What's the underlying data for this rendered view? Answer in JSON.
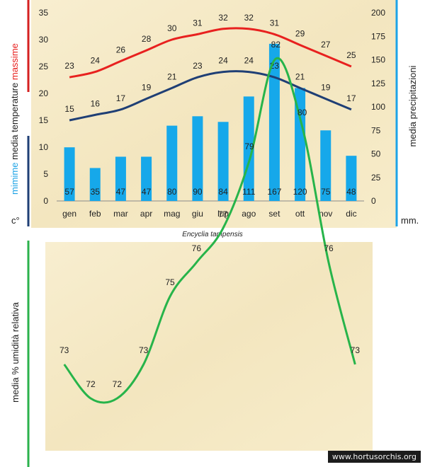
{
  "chart_data": [
    {
      "type": "bar",
      "title": "",
      "categories": [
        "gen",
        "feb",
        "mar",
        "apr",
        "mag",
        "giu",
        "lug",
        "ago",
        "set",
        "ott",
        "nov",
        "dic"
      ],
      "y_left": {
        "ticks": [
          0,
          5,
          10,
          15,
          20,
          25,
          30,
          35
        ],
        "ylim": [
          0,
          35
        ],
        "unit": "c°",
        "label_parts": {
          "top": "massime",
          "middle": "media  temperature",
          "bottom": "mimime"
        }
      },
      "y_right": {
        "ticks": [
          0,
          25,
          50,
          75,
          100,
          125,
          150,
          175,
          200
        ],
        "ylim": [
          0,
          200
        ],
        "unit": "mm.",
        "label": "media  precipitazioni"
      },
      "series": [
        {
          "name": "media precipitazioni",
          "kind": "bar",
          "axis": "right",
          "color": "#16a8ea",
          "values": [
            57,
            35,
            47,
            47,
            80,
            90,
            84,
            111,
            167,
            120,
            75,
            48
          ]
        },
        {
          "name": "massime",
          "kind": "line",
          "axis": "left",
          "color": "#e8211f",
          "values": [
            23,
            24,
            26,
            28,
            30,
            31,
            32,
            32,
            31,
            29,
            27,
            25
          ]
        },
        {
          "name": "mimime",
          "kind": "line",
          "axis": "left",
          "color": "#1f3f75",
          "values": [
            15,
            16,
            17,
            19,
            21,
            23,
            24,
            24,
            23,
            21,
            19,
            17
          ]
        }
      ],
      "grid": false,
      "colors": {
        "title_massime": "#e8211f",
        "title_mimime": "#1da3e6",
        "left_axis_top": "#d42020",
        "left_axis_bottom": "#1f3f75",
        "right_axis": "#1da3e6"
      }
    },
    {
      "type": "line",
      "title": "Encyclia tampensis",
      "categories": [
        "gen",
        "feb",
        "mar",
        "apr",
        "mag",
        "giu",
        "lug",
        "ago",
        "set",
        "ott",
        "nov",
        "dic"
      ],
      "ylabel": "media %  umidità relativa",
      "series": [
        {
          "name": "media % umidità relativa",
          "color": "#27b44a",
          "values": [
            73,
            72,
            72,
            73,
            75,
            76,
            77,
            79,
            82,
            80,
            76,
            73
          ]
        }
      ],
      "grid": false,
      "axis_color": "#2bb24c"
    }
  ],
  "footer": {
    "credit": "www.hortusorchis.org"
  },
  "colors": {
    "panel_bg": "#f6ecc8",
    "panel_bg2": "#f0e2b6"
  }
}
